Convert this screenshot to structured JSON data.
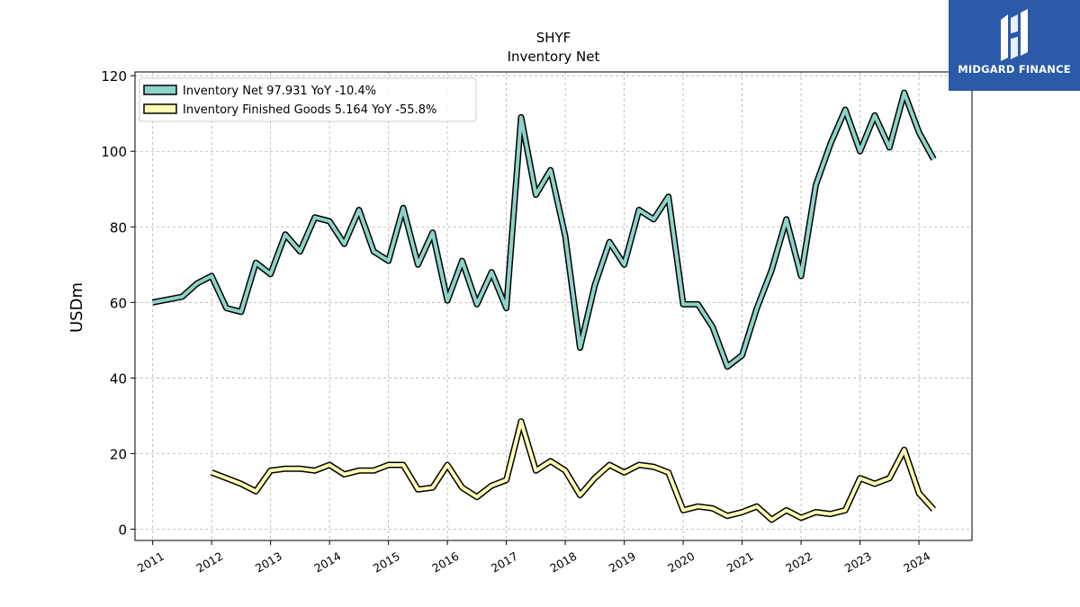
{
  "chart_data": {
    "type": "line",
    "title": "SHYF",
    "subtitle": "Inventory Net",
    "xlabel": "",
    "ylabel": "USDm",
    "xlim": [
      2010.7,
      2024.9
    ],
    "ylim": [
      -3,
      121
    ],
    "yticks": [
      0,
      20,
      40,
      60,
      80,
      100,
      120
    ],
    "xticks": [
      "2011",
      "2012",
      "2013",
      "2014",
      "2015",
      "2016",
      "2017",
      "2018",
      "2019",
      "2020",
      "2021",
      "2022",
      "2023",
      "2024"
    ],
    "grid": true,
    "legend_position": "top-left",
    "series": [
      {
        "name": "Inventory Net  97.931 YoY -10.4%",
        "color": "#8dd3c7",
        "points": [
          [
            2011.0,
            60
          ],
          [
            2011.5,
            61.5
          ],
          [
            2011.75,
            65
          ],
          [
            2012.0,
            67
          ],
          [
            2012.25,
            58.5
          ],
          [
            2012.5,
            57.5
          ],
          [
            2012.75,
            70.5
          ],
          [
            2013.0,
            67.5
          ],
          [
            2013.25,
            78
          ],
          [
            2013.5,
            73.5
          ],
          [
            2013.75,
            82.5
          ],
          [
            2014.0,
            81.5
          ],
          [
            2014.25,
            75.5
          ],
          [
            2014.5,
            84.5
          ],
          [
            2014.75,
            73.5
          ],
          [
            2015.0,
            71
          ],
          [
            2015.25,
            85
          ],
          [
            2015.5,
            70
          ],
          [
            2015.75,
            78.5
          ],
          [
            2016.0,
            60.5
          ],
          [
            2016.25,
            71
          ],
          [
            2016.5,
            59.5
          ],
          [
            2016.75,
            68
          ],
          [
            2017.0,
            58.5
          ],
          [
            2017.25,
            109
          ],
          [
            2017.5,
            88.5
          ],
          [
            2017.75,
            95
          ],
          [
            2018.0,
            77.5
          ],
          [
            2018.25,
            48
          ],
          [
            2018.5,
            64.5
          ],
          [
            2018.75,
            76
          ],
          [
            2019.0,
            70
          ],
          [
            2019.25,
            84.5
          ],
          [
            2019.5,
            82
          ],
          [
            2019.75,
            88
          ],
          [
            2020.0,
            59.5
          ],
          [
            2020.25,
            59.5
          ],
          [
            2020.5,
            53.5
          ],
          [
            2020.75,
            43
          ],
          [
            2021.0,
            46
          ],
          [
            2021.25,
            58.5
          ],
          [
            2021.5,
            68.5
          ],
          [
            2021.75,
            82
          ],
          [
            2022.0,
            67
          ],
          [
            2022.25,
            91
          ],
          [
            2022.5,
            102
          ],
          [
            2022.75,
            111
          ],
          [
            2023.0,
            100
          ],
          [
            2023.25,
            109.5
          ],
          [
            2023.5,
            101
          ],
          [
            2023.75,
            115.5
          ],
          [
            2024.0,
            105
          ],
          [
            2024.25,
            97.9
          ]
        ]
      },
      {
        "name": "Inventory Finished Goods  5.164 YoY -55.8%",
        "color": "#ffffb3",
        "points": [
          [
            2012.0,
            15
          ],
          [
            2012.5,
            12
          ],
          [
            2012.75,
            10
          ],
          [
            2013.0,
            15.5
          ],
          [
            2013.25,
            16
          ],
          [
            2013.5,
            16
          ],
          [
            2013.75,
            15.5
          ],
          [
            2014.0,
            17
          ],
          [
            2014.25,
            14.5
          ],
          [
            2014.5,
            15.5
          ],
          [
            2014.75,
            15.5
          ],
          [
            2015.0,
            17
          ],
          [
            2015.25,
            17
          ],
          [
            2015.5,
            10.5
          ],
          [
            2015.75,
            11
          ],
          [
            2016.0,
            17
          ],
          [
            2016.25,
            11
          ],
          [
            2016.5,
            8.5
          ],
          [
            2016.75,
            11.5
          ],
          [
            2017.0,
            13
          ],
          [
            2017.25,
            28.5
          ],
          [
            2017.5,
            15.5
          ],
          [
            2017.75,
            18
          ],
          [
            2018.0,
            15.5
          ],
          [
            2018.25,
            9
          ],
          [
            2018.5,
            13.5
          ],
          [
            2018.75,
            17
          ],
          [
            2019.0,
            15
          ],
          [
            2019.25,
            17
          ],
          [
            2019.5,
            16.5
          ],
          [
            2019.75,
            15
          ],
          [
            2020.0,
            5
          ],
          [
            2020.25,
            6
          ],
          [
            2020.5,
            5.5
          ],
          [
            2020.75,
            3.5
          ],
          [
            2021.0,
            4.5
          ],
          [
            2021.25,
            6
          ],
          [
            2021.5,
            2.5
          ],
          [
            2021.75,
            5
          ],
          [
            2022.0,
            3
          ],
          [
            2022.25,
            4.5
          ],
          [
            2022.5,
            4
          ],
          [
            2022.75,
            5
          ],
          [
            2023.0,
            13.5
          ],
          [
            2023.25,
            12
          ],
          [
            2023.5,
            13.5
          ],
          [
            2023.75,
            21
          ],
          [
            2024.0,
            9.5
          ],
          [
            2024.25,
            5.2
          ]
        ]
      }
    ]
  },
  "logo": {
    "text": "MIDGARD FINANCE",
    "color": "#2a5aa8"
  }
}
